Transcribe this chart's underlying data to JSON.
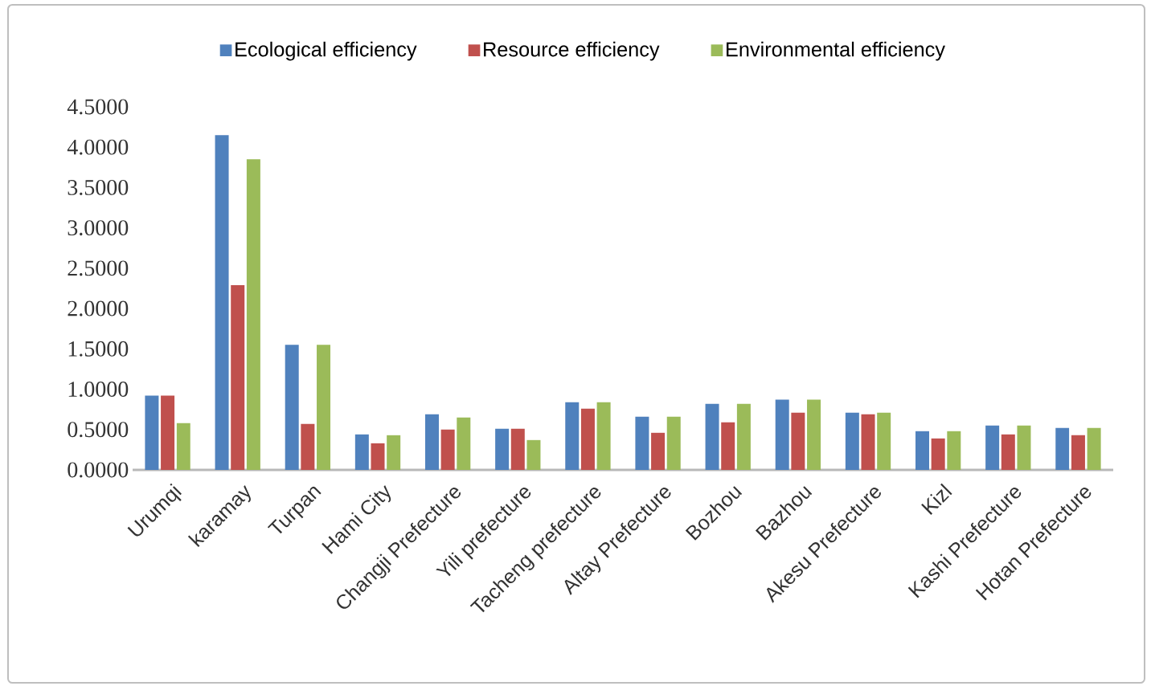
{
  "chart_data": {
    "type": "bar",
    "categories": [
      "Urumqi",
      "karamay",
      "Turpan",
      "Hami City",
      "Changji Prefecture",
      "Yili prefecture",
      "Tacheng prefecture",
      "Altay Prefecture",
      "Bozhou",
      "Bazhou",
      "Akesu Prefecture",
      "Kizl",
      "Kashi Prefecture",
      "Hotan Prefecture"
    ],
    "series": [
      {
        "name": "Ecological efficiency",
        "color": "#4f81bd",
        "values": [
          0.92,
          4.15,
          1.55,
          0.44,
          0.69,
          0.51,
          0.84,
          0.66,
          0.82,
          0.87,
          0.71,
          0.48,
          0.55,
          0.52
        ]
      },
      {
        "name": "Resource efficiency",
        "color": "#c0504d",
        "values": [
          0.92,
          2.29,
          0.57,
          0.33,
          0.5,
          0.51,
          0.76,
          0.46,
          0.59,
          0.71,
          0.69,
          0.39,
          0.44,
          0.43
        ]
      },
      {
        "name": "Environmental efficiency",
        "color": "#9bbb59",
        "values": [
          0.58,
          3.85,
          1.55,
          0.43,
          0.65,
          0.37,
          0.84,
          0.66,
          0.82,
          0.87,
          0.71,
          0.48,
          0.55,
          0.52
        ]
      }
    ],
    "ylim": [
      0,
      4.5
    ],
    "yticks": [
      {
        "value": 0,
        "label": "0.0000"
      },
      {
        "value": 0.5,
        "label": "0.5000"
      },
      {
        "value": 1,
        "label": "1.0000"
      },
      {
        "value": 1.5,
        "label": "1.5000"
      },
      {
        "value": 2,
        "label": "2.0000"
      },
      {
        "value": 2.5,
        "label": "2.5000"
      },
      {
        "value": 3,
        "label": "3.0000"
      },
      {
        "value": 3.5,
        "label": "3.5000"
      },
      {
        "value": 4,
        "label": "4.0000"
      },
      {
        "value": 4.5,
        "label": "4.5000"
      }
    ],
    "grid": false,
    "legend": "top"
  }
}
